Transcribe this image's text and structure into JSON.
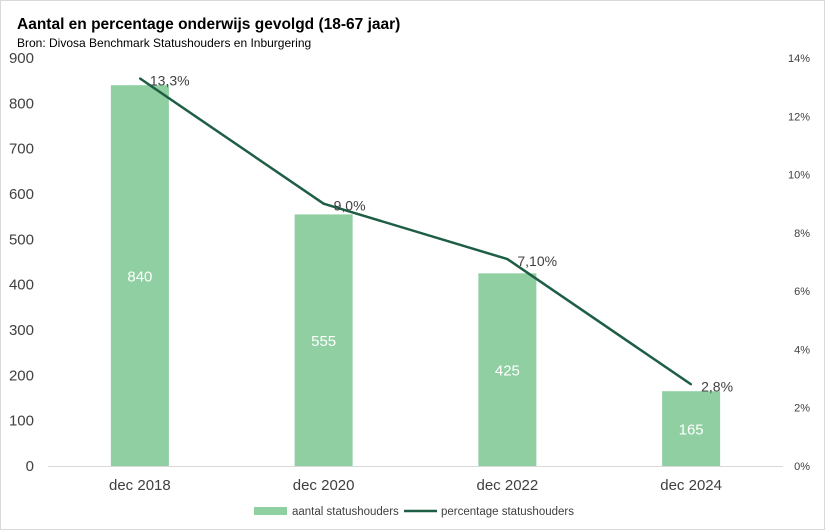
{
  "header": {
    "title": "Aantal en percentage onderwijs gevolgd (18-67 jaar)",
    "subtitle": "Bron: Divosa Benchmark Statushouders en Inburgering"
  },
  "colors": {
    "bar": "#8fcfa1",
    "line": "#1e5e45",
    "text": "#404040"
  },
  "chart_data": {
    "type": "bar",
    "title": "Aantal en percentage onderwijs gevolgd (18-67 jaar)",
    "categories": [
      "dec 2018",
      "dec 2020",
      "dec 2022",
      "dec 2024"
    ],
    "series": [
      {
        "name": "aantal statushouders",
        "type": "bar",
        "axis": "left",
        "values": [
          840,
          555,
          425,
          165
        ],
        "labels": [
          "840",
          "555",
          "425",
          "165"
        ]
      },
      {
        "name": "percentage statushouders",
        "type": "line",
        "axis": "right",
        "values": [
          13.3,
          9.0,
          7.1,
          2.8
        ],
        "labels": [
          "13,3%",
          "9,0%",
          "7,10%",
          "2,8%"
        ]
      }
    ],
    "y_left": {
      "min": 0,
      "max": 900,
      "ticks": [
        "0",
        "100",
        "200",
        "300",
        "400",
        "500",
        "600",
        "700",
        "800",
        "900"
      ]
    },
    "y_right": {
      "min": 0,
      "max": 14,
      "ticks": [
        "0%",
        "2%",
        "4%",
        "6%",
        "8%",
        "10%",
        "12%",
        "14%"
      ]
    },
    "grid": false,
    "legend": "bottom"
  }
}
